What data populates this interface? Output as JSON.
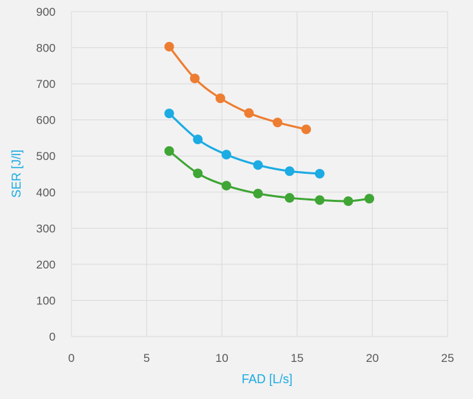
{
  "chart_data": {
    "type": "scatter",
    "title": "",
    "xlabel": "FAD [L/s]",
    "ylabel": "SER [J/l]",
    "xlim": [
      0,
      25
    ],
    "ylim": [
      0,
      900
    ],
    "x_ticks": [
      "0",
      "5",
      "10",
      "15",
      "20",
      "25"
    ],
    "y_ticks": [
      "0",
      "100",
      "200",
      "300",
      "400",
      "500",
      "600",
      "700",
      "800",
      "900"
    ],
    "grid": true,
    "legend": "none",
    "smooth_lines": true,
    "series": [
      {
        "color": "#ed7d31",
        "points": [
          [
            6.5,
            803
          ],
          [
            8.2,
            715
          ],
          [
            9.9,
            660
          ],
          [
            11.8,
            619
          ],
          [
            13.7,
            593
          ],
          [
            15.6,
            574
          ]
        ]
      },
      {
        "color": "#1cabe3",
        "points": [
          [
            6.5,
            618
          ],
          [
            8.4,
            546
          ],
          [
            10.3,
            504
          ],
          [
            12.4,
            475
          ],
          [
            14.5,
            458
          ],
          [
            16.5,
            451
          ]
        ]
      },
      {
        "color": "#3fa535",
        "points": [
          [
            6.5,
            514
          ],
          [
            8.4,
            452
          ],
          [
            10.3,
            418
          ],
          [
            12.4,
            396
          ],
          [
            14.5,
            384
          ],
          [
            16.5,
            378
          ],
          [
            18.4,
            375
          ],
          [
            19.8,
            382
          ]
        ]
      }
    ],
    "colors": {
      "axis_title": "#1cabe3",
      "tick_label": "#595959",
      "gridline": "#d9d9d9",
      "background": "#f2f2f2"
    }
  }
}
